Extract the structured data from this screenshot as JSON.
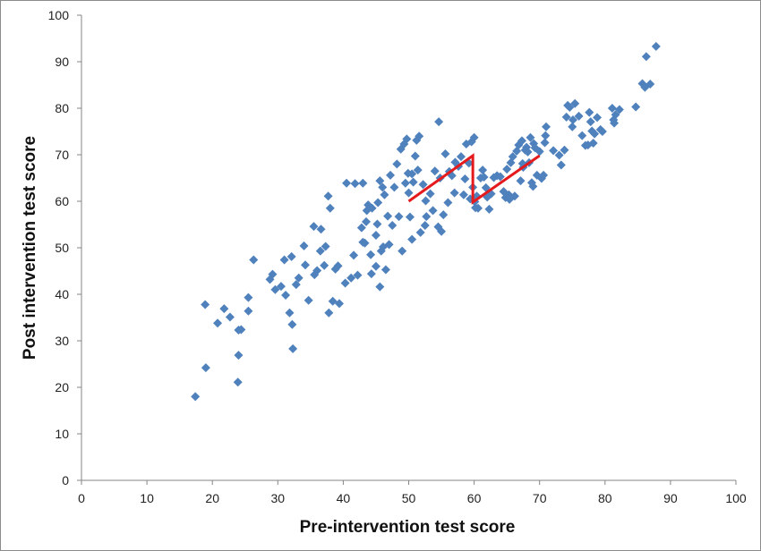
{
  "chart_data": {
    "type": "scatter",
    "xlabel": "Pre-intervention test score",
    "ylabel": "Post intervention test score",
    "xlim": [
      0,
      100
    ],
    "ylim": [
      0,
      100
    ],
    "x_ticks": [
      "0",
      "10",
      "20",
      "30",
      "40",
      "50",
      "60",
      "70",
      "80",
      "90",
      "100"
    ],
    "y_ticks": [
      "0",
      "10",
      "20",
      "30",
      "40",
      "50",
      "60",
      "70",
      "80",
      "90",
      "100"
    ],
    "grid": false,
    "legend": "none",
    "colors": {
      "points": "#4F81BD",
      "segments": "#E41A1C",
      "axis": "#868686"
    },
    "series": [
      {
        "marker": "diamond",
        "points": [
          [
            17.4,
            18.0
          ],
          [
            19.0,
            24.2
          ],
          [
            18.9,
            37.8
          ],
          [
            20.8,
            33.8
          ],
          [
            21.8,
            36.9
          ],
          [
            22.7,
            35.1
          ],
          [
            24.0,
            32.3
          ],
          [
            24.4,
            32.4
          ],
          [
            24.0,
            26.9
          ],
          [
            23.9,
            21.1
          ],
          [
            25.5,
            39.3
          ],
          [
            25.5,
            36.4
          ],
          [
            26.3,
            47.4
          ],
          [
            28.8,
            43.2
          ],
          [
            29.2,
            44.3
          ],
          [
            29.6,
            41.0
          ],
          [
            30.5,
            41.7
          ],
          [
            31.2,
            39.8
          ],
          [
            31.0,
            47.4
          ],
          [
            32.1,
            48.1
          ],
          [
            31.8,
            36.0
          ],
          [
            32.2,
            33.5
          ],
          [
            32.3,
            28.3
          ],
          [
            32.8,
            42.1
          ],
          [
            33.2,
            43.5
          ],
          [
            34.0,
            50.4
          ],
          [
            34.2,
            46.3
          ],
          [
            34.7,
            38.7
          ],
          [
            35.5,
            54.6
          ],
          [
            35.6,
            44.2
          ],
          [
            36.0,
            45.1
          ],
          [
            36.5,
            49.3
          ],
          [
            36.6,
            54.0
          ],
          [
            37.1,
            46.2
          ],
          [
            37.3,
            50.3
          ],
          [
            37.7,
            61.1
          ],
          [
            38.0,
            58.5
          ],
          [
            37.8,
            36.0
          ],
          [
            38.4,
            38.5
          ],
          [
            38.8,
            45.4
          ],
          [
            39.2,
            46.1
          ],
          [
            39.4,
            38.0
          ],
          [
            40.3,
            42.4
          ],
          [
            40.5,
            63.9
          ],
          [
            41.2,
            43.5
          ],
          [
            41.6,
            48.4
          ],
          [
            41.8,
            63.8
          ],
          [
            42.2,
            44.1
          ],
          [
            42.8,
            54.3
          ],
          [
            43.0,
            63.9
          ],
          [
            43.0,
            51.2
          ],
          [
            43.3,
            51.0
          ],
          [
            43.5,
            55.6
          ],
          [
            43.6,
            58.0
          ],
          [
            43.8,
            59.2
          ],
          [
            44.2,
            48.5
          ],
          [
            44.3,
            44.4
          ],
          [
            44.4,
            58.5
          ],
          [
            45.0,
            46.0
          ],
          [
            45.0,
            52.7
          ],
          [
            45.2,
            55.1
          ],
          [
            45.3,
            59.7
          ],
          [
            45.6,
            64.4
          ],
          [
            45.6,
            41.6
          ],
          [
            45.8,
            49.3
          ],
          [
            46.0,
            63.0
          ],
          [
            46.1,
            50.2
          ],
          [
            46.3,
            61.4
          ],
          [
            46.5,
            45.3
          ],
          [
            46.8,
            56.8
          ],
          [
            47.0,
            50.7
          ],
          [
            47.2,
            65.6
          ],
          [
            47.5,
            54.8
          ],
          [
            47.8,
            63.0
          ],
          [
            48.2,
            68.0
          ],
          [
            48.5,
            56.7
          ],
          [
            48.8,
            71.2
          ],
          [
            49.0,
            49.3
          ],
          [
            49.3,
            72.3
          ],
          [
            49.5,
            63.9
          ],
          [
            49.7,
            73.4
          ],
          [
            49.9,
            66.0
          ],
          [
            50.0,
            61.8
          ],
          [
            50.2,
            56.6
          ],
          [
            50.5,
            51.8
          ],
          [
            50.5,
            65.9
          ],
          [
            50.7,
            64.1
          ],
          [
            51.0,
            69.7
          ],
          [
            51.2,
            73.1
          ],
          [
            51.4,
            66.7
          ],
          [
            51.6,
            74.0
          ],
          [
            51.8,
            53.3
          ],
          [
            52.2,
            63.6
          ],
          [
            52.5,
            54.8
          ],
          [
            52.6,
            60.1
          ],
          [
            52.7,
            56.7
          ],
          [
            53.3,
            61.6
          ],
          [
            53.7,
            58.0
          ],
          [
            54.0,
            66.5
          ],
          [
            54.5,
            54.5
          ],
          [
            54.6,
            77.1
          ],
          [
            54.8,
            65.0
          ],
          [
            55.0,
            53.5
          ],
          [
            55.3,
            57.1
          ],
          [
            55.6,
            70.2
          ],
          [
            56.0,
            59.7
          ],
          [
            56.2,
            66.4
          ],
          [
            56.6,
            65.5
          ],
          [
            57.0,
            61.8
          ],
          [
            57.1,
            68.4
          ],
          [
            57.6,
            67.5
          ],
          [
            58.0,
            69.6
          ],
          [
            58.4,
            61.4
          ],
          [
            58.6,
            64.8
          ],
          [
            58.8,
            72.3
          ],
          [
            59.2,
            68.2
          ],
          [
            59.4,
            60.5
          ],
          [
            59.6,
            72.8
          ],
          [
            59.8,
            63.0
          ],
          [
            60.0,
            73.7
          ],
          [
            60.1,
            59.9
          ],
          [
            60.2,
            58.6
          ],
          [
            60.4,
            61.1
          ],
          [
            60.6,
            58.5
          ],
          [
            61.0,
            65.0
          ],
          [
            61.3,
            66.7
          ],
          [
            61.5,
            65.2
          ],
          [
            61.8,
            62.9
          ],
          [
            62.0,
            60.9
          ],
          [
            62.3,
            58.3
          ],
          [
            62.6,
            61.6
          ],
          [
            63.0,
            65.1
          ],
          [
            63.5,
            65.5
          ],
          [
            64.0,
            65.3
          ],
          [
            64.5,
            62.1
          ],
          [
            64.8,
            60.8
          ],
          [
            65.0,
            66.9
          ],
          [
            65.3,
            61.4
          ],
          [
            65.4,
            60.4
          ],
          [
            65.6,
            68.3
          ],
          [
            65.9,
            69.6
          ],
          [
            66.2,
            61.1
          ],
          [
            66.5,
            70.8
          ],
          [
            66.8,
            72.1
          ],
          [
            67.1,
            64.4
          ],
          [
            67.3,
            73.0
          ],
          [
            67.4,
            68.1
          ],
          [
            67.5,
            67.3
          ],
          [
            67.8,
            71.0
          ],
          [
            68.0,
            71.6
          ],
          [
            68.2,
            70.6
          ],
          [
            68.4,
            68.3
          ],
          [
            68.6,
            73.7
          ],
          [
            68.8,
            64.0
          ],
          [
            69.0,
            63.2
          ],
          [
            69.1,
            72.4
          ],
          [
            69.3,
            71.5
          ],
          [
            69.6,
            65.6
          ],
          [
            70.0,
            70.7
          ],
          [
            70.3,
            64.9
          ],
          [
            70.6,
            65.6
          ],
          [
            70.8,
            72.6
          ],
          [
            70.9,
            74.1
          ],
          [
            71.0,
            76.0
          ],
          [
            72.1,
            70.9
          ],
          [
            73.0,
            69.9
          ],
          [
            73.3,
            67.8
          ],
          [
            73.8,
            71.0
          ],
          [
            74.1,
            78.1
          ],
          [
            74.3,
            80.6
          ],
          [
            74.6,
            80.2
          ],
          [
            75.0,
            76.0
          ],
          [
            75.1,
            77.5
          ],
          [
            75.4,
            81.0
          ],
          [
            76.0,
            78.3
          ],
          [
            76.5,
            74.1
          ],
          [
            77.0,
            72.0
          ],
          [
            77.4,
            72.1
          ],
          [
            77.6,
            79.1
          ],
          [
            77.8,
            77.1
          ],
          [
            78.0,
            75.1
          ],
          [
            78.2,
            72.5
          ],
          [
            78.4,
            74.5
          ],
          [
            78.8,
            78.0
          ],
          [
            79.3,
            75.4
          ],
          [
            79.6,
            75.0
          ],
          [
            81.1,
            80.0
          ],
          [
            81.3,
            77.5
          ],
          [
            81.4,
            76.8
          ],
          [
            81.6,
            78.6
          ],
          [
            82.2,
            79.7
          ],
          [
            84.7,
            80.3
          ],
          [
            85.7,
            85.3
          ],
          [
            86.1,
            84.5
          ],
          [
            86.3,
            91.1
          ],
          [
            86.9,
            85.2
          ],
          [
            87.8,
            93.3
          ]
        ]
      }
    ],
    "annotation_lines": [
      {
        "points": [
          [
            50.0,
            60.0
          ],
          [
            59.8,
            69.8
          ],
          [
            59.8,
            59.8
          ],
          [
            70.0,
            69.8
          ]
        ]
      }
    ]
  }
}
